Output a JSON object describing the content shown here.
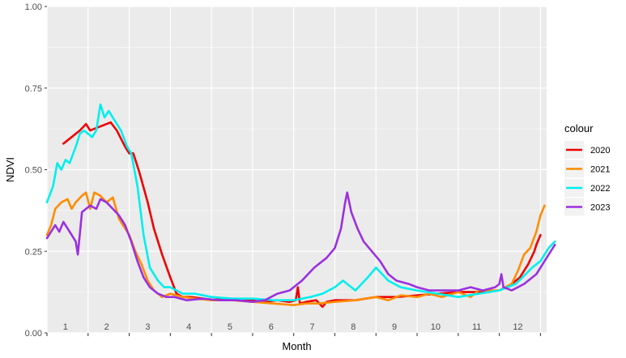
{
  "chart_data": {
    "type": "line",
    "xlabel": "Month",
    "ylabel": "NDVI",
    "xlim": [
      0,
      12
    ],
    "ylim": [
      0,
      1
    ],
    "y_ticks": [
      "0.00",
      "0.25",
      "0.50",
      "0.75",
      "1.00"
    ],
    "y_tick_values": [
      0,
      0.25,
      0.5,
      0.75,
      1.0
    ],
    "month_labels": [
      "1",
      "2",
      "3",
      "4",
      "5",
      "6",
      "7",
      "8",
      "9",
      "10",
      "11",
      "12"
    ],
    "grid": true,
    "legend": {
      "title": "colour",
      "placement": "right"
    },
    "series": [
      {
        "name": "2020",
        "color": "#ee0000",
        "points": [
          [
            0.4,
            0.58
          ],
          [
            0.6,
            0.6
          ],
          [
            0.8,
            0.62
          ],
          [
            0.95,
            0.64
          ],
          [
            1.05,
            0.62
          ],
          [
            1.25,
            0.63
          ],
          [
            1.45,
            0.64
          ],
          [
            1.55,
            0.645
          ],
          [
            1.7,
            0.62
          ],
          [
            1.9,
            0.57
          ],
          [
            2.0,
            0.55
          ],
          [
            2.1,
            0.55
          ],
          [
            2.25,
            0.49
          ],
          [
            2.45,
            0.4
          ],
          [
            2.6,
            0.32
          ],
          [
            2.8,
            0.24
          ],
          [
            3.0,
            0.17
          ],
          [
            3.15,
            0.12
          ],
          [
            3.3,
            0.11
          ],
          [
            3.5,
            0.11
          ],
          [
            3.8,
            0.105
          ],
          [
            4.0,
            0.1
          ],
          [
            4.3,
            0.105
          ],
          [
            4.6,
            0.1
          ],
          [
            5.0,
            0.1
          ],
          [
            5.3,
            0.095
          ],
          [
            5.6,
            0.1
          ],
          [
            5.9,
            0.095
          ],
          [
            6.05,
            0.1
          ],
          [
            6.1,
            0.14
          ],
          [
            6.15,
            0.09
          ],
          [
            6.3,
            0.095
          ],
          [
            6.55,
            0.1
          ],
          [
            6.7,
            0.08
          ],
          [
            6.8,
            0.095
          ],
          [
            7.0,
            0.1
          ],
          [
            7.5,
            0.1
          ],
          [
            8.0,
            0.11
          ],
          [
            8.5,
            0.11
          ],
          [
            9.0,
            0.115
          ],
          [
            9.5,
            0.12
          ],
          [
            10.0,
            0.125
          ],
          [
            10.5,
            0.125
          ],
          [
            11.0,
            0.13
          ],
          [
            11.3,
            0.15
          ],
          [
            11.5,
            0.17
          ],
          [
            11.7,
            0.21
          ],
          [
            11.85,
            0.25
          ],
          [
            11.9,
            0.27
          ],
          [
            12.0,
            0.3
          ]
        ]
      },
      {
        "name": "2021",
        "color": "#ff8c00",
        "points": [
          [
            0.0,
            0.3
          ],
          [
            0.1,
            0.33
          ],
          [
            0.2,
            0.38
          ],
          [
            0.35,
            0.4
          ],
          [
            0.5,
            0.41
          ],
          [
            0.6,
            0.38
          ],
          [
            0.7,
            0.4
          ],
          [
            0.85,
            0.42
          ],
          [
            0.95,
            0.43
          ],
          [
            1.05,
            0.38
          ],
          [
            1.15,
            0.43
          ],
          [
            1.3,
            0.42
          ],
          [
            1.45,
            0.4
          ],
          [
            1.6,
            0.415
          ],
          [
            1.75,
            0.35
          ],
          [
            1.85,
            0.33
          ],
          [
            2.0,
            0.3
          ],
          [
            2.15,
            0.25
          ],
          [
            2.3,
            0.21
          ],
          [
            2.45,
            0.16
          ],
          [
            2.6,
            0.13
          ],
          [
            2.8,
            0.11
          ],
          [
            3.0,
            0.12
          ],
          [
            3.3,
            0.11
          ],
          [
            3.6,
            0.105
          ],
          [
            4.0,
            0.1
          ],
          [
            4.5,
            0.1
          ],
          [
            5.0,
            0.095
          ],
          [
            5.5,
            0.09
          ],
          [
            6.0,
            0.085
          ],
          [
            6.3,
            0.09
          ],
          [
            6.6,
            0.09
          ],
          [
            7.0,
            0.095
          ],
          [
            7.5,
            0.1
          ],
          [
            8.0,
            0.11
          ],
          [
            8.3,
            0.1
          ],
          [
            8.6,
            0.115
          ],
          [
            9.0,
            0.11
          ],
          [
            9.3,
            0.12
          ],
          [
            9.6,
            0.11
          ],
          [
            10.0,
            0.125
          ],
          [
            10.3,
            0.11
          ],
          [
            10.5,
            0.13
          ],
          [
            11.0,
            0.13
          ],
          [
            11.3,
            0.15
          ],
          [
            11.45,
            0.19
          ],
          [
            11.6,
            0.24
          ],
          [
            11.75,
            0.26
          ],
          [
            11.9,
            0.31
          ],
          [
            12.0,
            0.36
          ],
          [
            12.1,
            0.39
          ]
        ]
      },
      {
        "name": "2022",
        "color": "#00eeee",
        "points": [
          [
            0.0,
            0.4
          ],
          [
            0.15,
            0.45
          ],
          [
            0.25,
            0.52
          ],
          [
            0.35,
            0.5
          ],
          [
            0.45,
            0.53
          ],
          [
            0.55,
            0.52
          ],
          [
            0.7,
            0.57
          ],
          [
            0.8,
            0.61
          ],
          [
            0.9,
            0.62
          ],
          [
            1.0,
            0.61
          ],
          [
            1.1,
            0.6
          ],
          [
            1.2,
            0.62
          ],
          [
            1.3,
            0.7
          ],
          [
            1.4,
            0.66
          ],
          [
            1.5,
            0.68
          ],
          [
            1.65,
            0.65
          ],
          [
            1.8,
            0.62
          ],
          [
            1.95,
            0.57
          ],
          [
            2.05,
            0.55
          ],
          [
            2.2,
            0.45
          ],
          [
            2.35,
            0.3
          ],
          [
            2.5,
            0.2
          ],
          [
            2.7,
            0.16
          ],
          [
            2.85,
            0.14
          ],
          [
            3.0,
            0.14
          ],
          [
            3.3,
            0.12
          ],
          [
            3.6,
            0.12
          ],
          [
            4.0,
            0.11
          ],
          [
            4.5,
            0.105
          ],
          [
            5.0,
            0.105
          ],
          [
            5.5,
            0.1
          ],
          [
            6.0,
            0.1
          ],
          [
            6.4,
            0.11
          ],
          [
            6.7,
            0.12
          ],
          [
            7.0,
            0.14
          ],
          [
            7.2,
            0.16
          ],
          [
            7.5,
            0.13
          ],
          [
            7.8,
            0.17
          ],
          [
            8.0,
            0.2
          ],
          [
            8.3,
            0.16
          ],
          [
            8.6,
            0.14
          ],
          [
            9.0,
            0.13
          ],
          [
            9.5,
            0.12
          ],
          [
            10.0,
            0.11
          ],
          [
            10.5,
            0.12
          ],
          [
            11.0,
            0.13
          ],
          [
            11.4,
            0.15
          ],
          [
            11.8,
            0.2
          ],
          [
            12.0,
            0.22
          ],
          [
            12.2,
            0.26
          ],
          [
            12.35,
            0.28
          ]
        ]
      },
      {
        "name": "2023",
        "color": "#9b30e0",
        "points": [
          [
            0.0,
            0.29
          ],
          [
            0.1,
            0.31
          ],
          [
            0.2,
            0.33
          ],
          [
            0.3,
            0.31
          ],
          [
            0.4,
            0.34
          ],
          [
            0.5,
            0.32
          ],
          [
            0.6,
            0.3
          ],
          [
            0.7,
            0.28
          ],
          [
            0.75,
            0.24
          ],
          [
            0.85,
            0.37
          ],
          [
            0.95,
            0.38
          ],
          [
            1.05,
            0.39
          ],
          [
            1.2,
            0.38
          ],
          [
            1.3,
            0.41
          ],
          [
            1.45,
            0.4
          ],
          [
            1.6,
            0.38
          ],
          [
            1.75,
            0.36
          ],
          [
            1.9,
            0.33
          ],
          [
            2.05,
            0.28
          ],
          [
            2.2,
            0.22
          ],
          [
            2.35,
            0.17
          ],
          [
            2.5,
            0.14
          ],
          [
            2.7,
            0.12
          ],
          [
            2.9,
            0.11
          ],
          [
            3.1,
            0.11
          ],
          [
            3.4,
            0.1
          ],
          [
            3.8,
            0.105
          ],
          [
            4.2,
            0.1
          ],
          [
            4.6,
            0.1
          ],
          [
            5.0,
            0.095
          ],
          [
            5.3,
            0.1
          ],
          [
            5.6,
            0.12
          ],
          [
            5.9,
            0.13
          ],
          [
            6.2,
            0.16
          ],
          [
            6.5,
            0.2
          ],
          [
            6.8,
            0.23
          ],
          [
            7.0,
            0.26
          ],
          [
            7.15,
            0.32
          ],
          [
            7.25,
            0.4
          ],
          [
            7.3,
            0.43
          ],
          [
            7.4,
            0.37
          ],
          [
            7.55,
            0.32
          ],
          [
            7.7,
            0.28
          ],
          [
            7.9,
            0.25
          ],
          [
            8.1,
            0.22
          ],
          [
            8.3,
            0.18
          ],
          [
            8.5,
            0.16
          ],
          [
            8.8,
            0.15
          ],
          [
            9.0,
            0.14
          ],
          [
            9.3,
            0.13
          ],
          [
            9.6,
            0.13
          ],
          [
            10.0,
            0.13
          ],
          [
            10.3,
            0.14
          ],
          [
            10.6,
            0.13
          ],
          [
            10.9,
            0.14
          ],
          [
            11.0,
            0.15
          ],
          [
            11.05,
            0.18
          ],
          [
            11.1,
            0.14
          ],
          [
            11.3,
            0.13
          ],
          [
            11.6,
            0.15
          ],
          [
            11.9,
            0.18
          ],
          [
            12.1,
            0.22
          ],
          [
            12.35,
            0.27
          ]
        ]
      }
    ]
  }
}
